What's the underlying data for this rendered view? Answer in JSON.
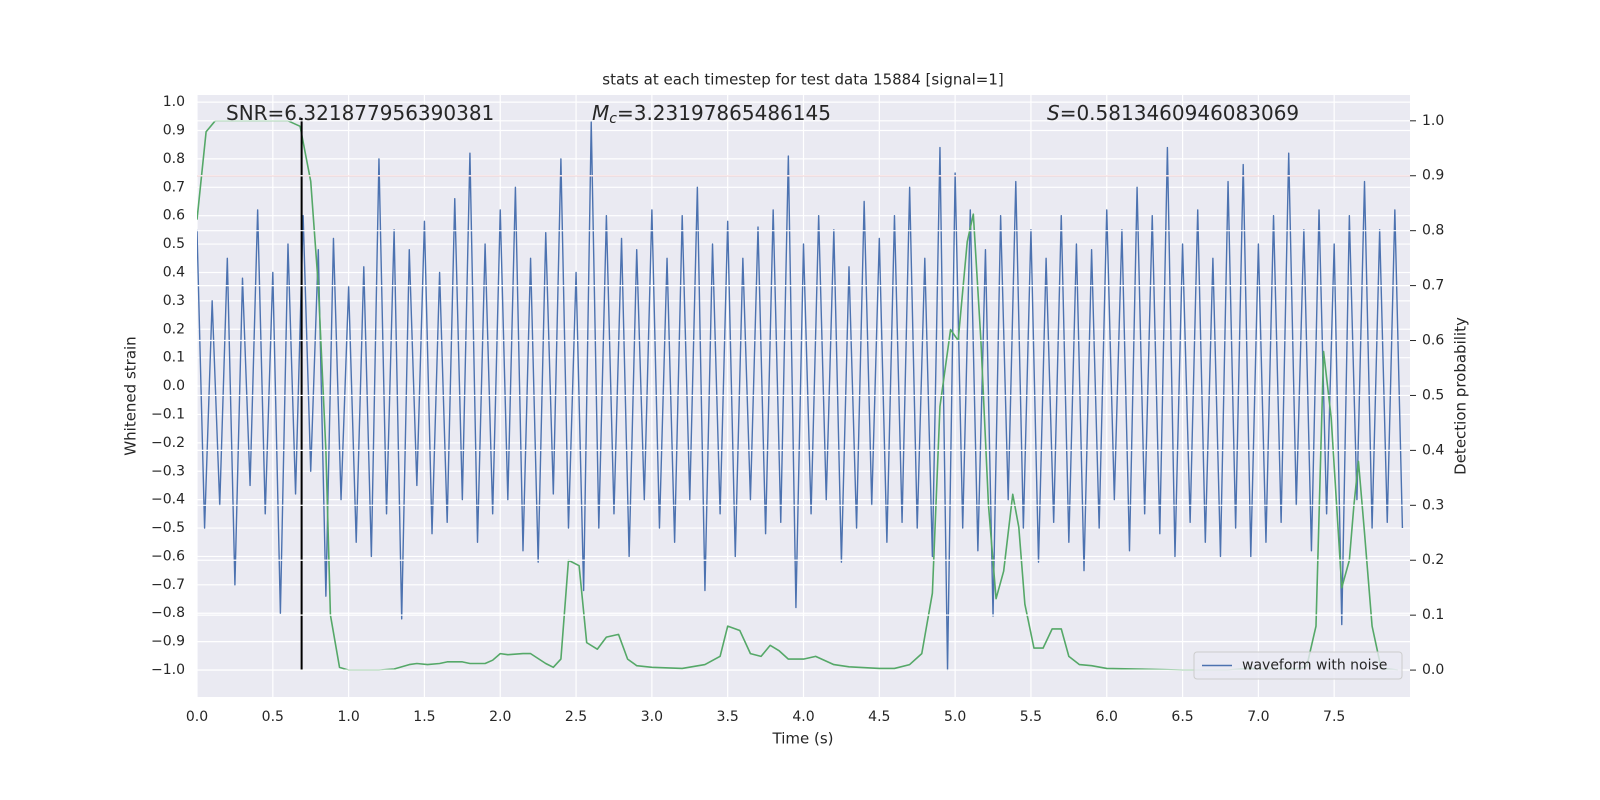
{
  "chart_data": {
    "type": "line",
    "title": "stats at each timestep for test data 15884 [signal=1]",
    "xlabel": "Time (s)",
    "ylabel": "Whitened strain",
    "y2label": "Detection probability",
    "xlim": [
      0,
      8
    ],
    "ylim": [
      -1.095,
      1.025
    ],
    "y2lim": [
      -0.049,
      1.047
    ],
    "xticks": [
      {
        "value": 0,
        "label": "0.0"
      },
      0.5,
      {
        "value": 1,
        "label": "1.0"
      },
      1.5,
      {
        "value": 2,
        "label": "2.0"
      },
      2.5,
      {
        "value": 3,
        "label": "3.0"
      },
      3.5,
      {
        "value": 4,
        "label": "4.0"
      },
      4.5,
      {
        "value": 5,
        "label": "5.0"
      },
      5.5,
      {
        "value": 6,
        "label": "6.0"
      },
      6.5,
      {
        "value": 7,
        "label": "7.0"
      },
      7.5
    ],
    "yticks": [
      {
        "value": -1,
        "label": "−1.0"
      },
      {
        "value": -0.9,
        "label": "−0.9"
      },
      {
        "value": -0.8,
        "label": "−0.8"
      },
      {
        "value": -0.7,
        "label": "−0.7"
      },
      {
        "value": -0.6,
        "label": "−0.6"
      },
      {
        "value": -0.5,
        "label": "−0.5"
      },
      {
        "value": -0.4,
        "label": "−0.4"
      },
      {
        "value": -0.3,
        "label": "−0.3"
      },
      {
        "value": -0.2,
        "label": "−0.2"
      },
      {
        "value": -0.1,
        "label": "−0.1"
      },
      {
        "value": 0,
        "label": "0.0"
      },
      0.1,
      0.2,
      0.3,
      0.4,
      0.5,
      0.6,
      0.7,
      0.8,
      0.9,
      {
        "value": 1,
        "label": "1.0"
      }
    ],
    "y2ticks": [
      {
        "value": 0,
        "label": "0.0"
      },
      0.1,
      0.2,
      0.3,
      0.4,
      0.5,
      0.6,
      0.7,
      0.8,
      0.9,
      {
        "value": 1,
        "label": "1.0"
      }
    ],
    "grid": true,
    "legend": "lower right",
    "series": [
      {
        "name": "waveform with noise",
        "color": "#4c72b0",
        "x": [
          0,
          0.05,
          0.1,
          0.15,
          0.2,
          0.25,
          0.3,
          0.35,
          0.4,
          0.45,
          0.5,
          0.55,
          0.6,
          0.65,
          0.7,
          0.75,
          0.8,
          0.85,
          0.9,
          0.95,
          1,
          1.05,
          1.1,
          1.15,
          1.2,
          1.25,
          1.3,
          1.35,
          1.4,
          1.45,
          1.5,
          1.55,
          1.6,
          1.65,
          1.7,
          1.75,
          1.8,
          1.85,
          1.9,
          1.95,
          2,
          2.05,
          2.1,
          2.15,
          2.2,
          2.25,
          2.3,
          2.35,
          2.4,
          2.45,
          2.5,
          2.55,
          2.6,
          2.65,
          2.7,
          2.75,
          2.8,
          2.85,
          2.9,
          2.95,
          3,
          3.05,
          3.1,
          3.15,
          3.2,
          3.25,
          3.3,
          3.35,
          3.4,
          3.45,
          3.5,
          3.55,
          3.6,
          3.65,
          3.7,
          3.75,
          3.8,
          3.85,
          3.9,
          3.95,
          4,
          4.05,
          4.1,
          4.15,
          4.2,
          4.25,
          4.3,
          4.35,
          4.4,
          4.45,
          4.5,
          4.55,
          4.6,
          4.65,
          4.7,
          4.75,
          4.8,
          4.85,
          4.9,
          4.95,
          5,
          5.05,
          5.1,
          5.15,
          5.2,
          5.25,
          5.3,
          5.35,
          5.4,
          5.45,
          5.5,
          5.55,
          5.6,
          5.65,
          5.7,
          5.75,
          5.8,
          5.85,
          5.9,
          5.95,
          6,
          6.05,
          6.1,
          6.15,
          6.2,
          6.25,
          6.3,
          6.35,
          6.4,
          6.45,
          6.5,
          6.55,
          6.6,
          6.65,
          6.7,
          6.75,
          6.8,
          6.85,
          6.9,
          6.95,
          7,
          7.05,
          7.1,
          7.15,
          7.2,
          7.25,
          7.3,
          7.35,
          7.4,
          7.45,
          7.5,
          7.55,
          7.6,
          7.65,
          7.7,
          7.75,
          7.8,
          7.85,
          7.9,
          7.95
        ],
        "values": [
          0.55,
          -0.5,
          0.3,
          -0.42,
          0.45,
          -0.7,
          0.38,
          -0.35,
          0.62,
          -0.45,
          0.4,
          -0.8,
          0.5,
          -0.38,
          0.6,
          -0.3,
          0.48,
          -0.74,
          0.52,
          -0.4,
          0.35,
          -0.55,
          0.42,
          -0.6,
          0.8,
          -0.45,
          0.55,
          -0.82,
          0.48,
          -0.35,
          0.58,
          -0.52,
          0.4,
          -0.48,
          0.66,
          -0.4,
          0.82,
          -0.55,
          0.5,
          -0.45,
          0.62,
          -0.4,
          0.7,
          -0.58,
          0.45,
          -0.62,
          0.54,
          -0.38,
          0.8,
          -0.5,
          0.4,
          -0.72,
          0.93,
          -0.5,
          0.6,
          -0.45,
          0.52,
          -0.6,
          0.48,
          -0.4,
          0.62,
          -0.5,
          0.45,
          -0.55,
          0.6,
          -0.4,
          0.7,
          -0.72,
          0.5,
          -0.45,
          0.58,
          -0.6,
          0.45,
          -0.4,
          0.56,
          -0.52,
          0.62,
          -0.48,
          0.81,
          -0.78,
          0.5,
          -0.45,
          0.6,
          -0.4,
          0.55,
          -0.62,
          0.42,
          -0.5,
          0.65,
          -0.42,
          0.52,
          -0.55,
          0.6,
          -0.48,
          0.7,
          -0.5,
          0.45,
          -0.6,
          0.84,
          -1.0,
          0.75,
          -0.5,
          0.62,
          -0.58,
          0.48,
          -0.81,
          0.6,
          -0.4,
          0.72,
          -0.5,
          0.55,
          -0.62,
          0.45,
          -0.48,
          0.6,
          -0.55,
          0.5,
          -0.65,
          0.48,
          -0.5,
          0.62,
          -0.4,
          0.55,
          -0.58,
          0.7,
          -0.45,
          0.6,
          -0.52,
          0.84,
          -0.6,
          0.5,
          -0.48,
          0.62,
          -0.55,
          0.45,
          -0.6,
          0.72,
          -0.5,
          0.78,
          -0.6,
          0.5,
          -0.55,
          0.6,
          -0.48,
          0.82,
          -0.42,
          0.55,
          -0.58,
          0.62,
          -0.45,
          0.5,
          -0.84,
          0.6,
          -0.4,
          0.72,
          -0.5,
          0.55,
          -0.48,
          0.62,
          -0.5
        ]
      },
      {
        "color": "#55a868",
        "axis": "y2",
        "x": [
          0.0,
          0.06,
          0.12,
          0.2,
          0.3,
          0.4,
          0.5,
          0.6,
          0.68,
          0.75,
          0.8,
          0.85,
          0.88,
          0.94,
          1.0,
          1.2,
          1.3,
          1.4,
          1.45,
          1.52,
          1.6,
          1.65,
          1.75,
          1.8,
          1.9,
          1.95,
          2.0,
          2.05,
          2.15,
          2.2,
          2.3,
          2.35,
          2.4,
          2.45,
          2.52,
          2.57,
          2.64,
          2.7,
          2.78,
          2.84,
          2.9,
          3.0,
          3.2,
          3.35,
          3.45,
          3.5,
          3.58,
          3.65,
          3.72,
          3.78,
          3.84,
          3.9,
          4.0,
          4.08,
          4.2,
          4.3,
          4.5,
          4.6,
          4.7,
          4.78,
          4.85,
          4.9,
          4.97,
          5.02,
          5.08,
          5.12,
          5.17,
          5.22,
          5.27,
          5.32,
          5.38,
          5.42,
          5.46,
          5.52,
          5.58,
          5.64,
          5.7,
          5.75,
          5.82,
          5.9,
          6.0,
          6.2,
          6.5,
          6.8,
          6.95,
          7.05,
          7.2,
          7.28,
          7.32,
          7.38,
          7.43,
          7.48,
          7.55,
          7.6,
          7.63,
          7.66,
          7.7,
          7.75,
          7.81,
          7.92
        ],
        "values": [
          0.82,
          0.98,
          1.0,
          1.0,
          1.0,
          1.0,
          1.0,
          1.0,
          0.99,
          0.89,
          0.7,
          0.4,
          0.1,
          0.005,
          0.0,
          0.0,
          0.002,
          0.01,
          0.012,
          0.01,
          0.012,
          0.015,
          0.015,
          0.012,
          0.012,
          0.018,
          0.03,
          0.028,
          0.03,
          0.03,
          0.012,
          0.005,
          0.02,
          0.2,
          0.19,
          0.05,
          0.038,
          0.06,
          0.065,
          0.02,
          0.008,
          0.005,
          0.003,
          0.01,
          0.025,
          0.08,
          0.072,
          0.03,
          0.025,
          0.045,
          0.035,
          0.02,
          0.02,
          0.025,
          0.01,
          0.006,
          0.003,
          0.003,
          0.01,
          0.03,
          0.14,
          0.48,
          0.62,
          0.6,
          0.78,
          0.83,
          0.6,
          0.3,
          0.13,
          0.18,
          0.32,
          0.26,
          0.12,
          0.04,
          0.04,
          0.075,
          0.075,
          0.025,
          0.01,
          0.008,
          0.003,
          0.002,
          0.0,
          0.0,
          0.003,
          0.001,
          0.002,
          0.003,
          0.008,
          0.08,
          0.58,
          0.46,
          0.15,
          0.2,
          0.3,
          0.38,
          0.25,
          0.08,
          0.003,
          0.0
        ]
      }
    ],
    "hlines": [
      {
        "axis": "y2",
        "value": 0.9,
        "color": "#c44e52"
      }
    ],
    "vlines": [
      {
        "x": 0.69,
        "ymin": -1.0,
        "ymax": 0.944,
        "color": "#000000"
      }
    ],
    "annotations": [
      {
        "text": "SNR=6.321877956390381"
      },
      {
        "symbol": "M",
        "subscript": "c",
        "text": "=3.23197865486145"
      },
      {
        "symbol": "S",
        "text": "=0.5813460946083069"
      }
    ]
  }
}
